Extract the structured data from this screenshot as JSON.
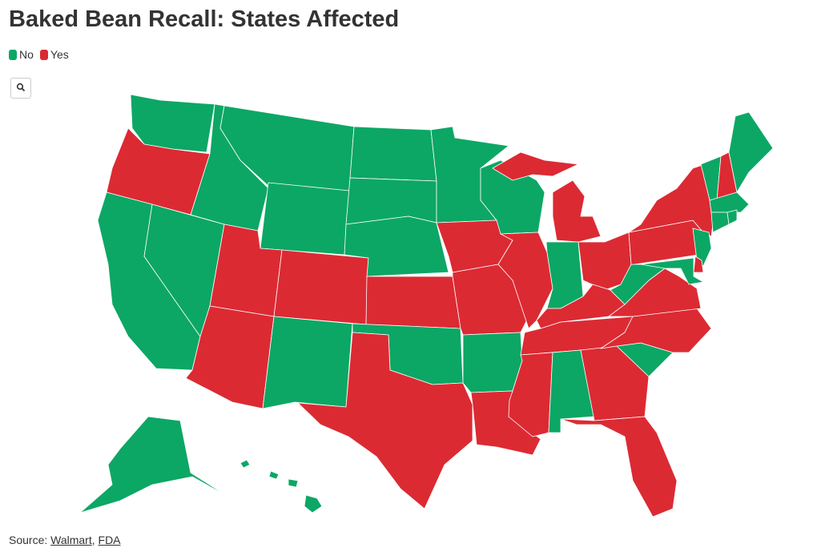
{
  "title": "Baked Bean Recall: States Affected",
  "legend": [
    {
      "label": "No",
      "color": "#0ca765"
    },
    {
      "label": "Yes",
      "color": "#dc2a33"
    }
  ],
  "states": [
    "No",
    "Yes",
    "No",
    "No",
    "No",
    "No",
    "No",
    "Yes",
    "Yes",
    "Yes",
    "No",
    "No",
    "No",
    "No",
    "Yes",
    "No",
    "Yes",
    "No",
    "Yes",
    "Yes",
    "No",
    "Yes",
    "No",
    "Yes",
    "Yes",
    "No",
    "Yes",
    "Yes",
    "Yes",
    "Yes",
    "No",
    "Yes",
    "Yes",
    "No",
    "Yes",
    "Yes",
    "No",
    "Yes",
    "Yes",
    "No",
    "Yes",
    "No",
    "No",
    "Yes",
    "No",
    "No",
    "No",
    "No",
    "No",
    "No"
  ],
  "source": {
    "label": "Source:",
    "links": [
      "Walmart",
      "FDA"
    ],
    "separator": ","
  }
}
